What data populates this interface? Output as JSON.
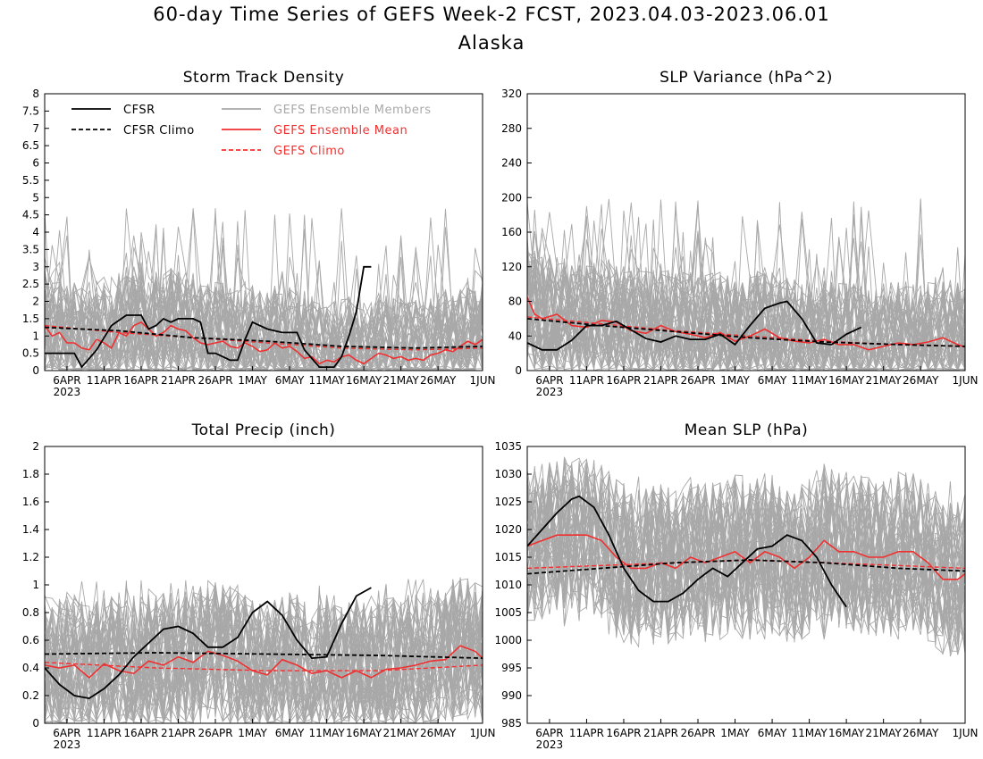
{
  "title": "60-day Time Series of GEFS Week-2 FCST, 2023.04.03-2023.06.01",
  "subtitle": "Alaska",
  "colors": {
    "cfsr": "#000000",
    "climo": "#000000",
    "members": "#a8a8a8",
    "mean": "#f03030",
    "gefs_climo": "#f03030"
  },
  "legend": {
    "cfsr": "CFSR",
    "cfsr_climo": "CFSR Climo",
    "members": "GEFS Ensemble Members",
    "mean": "GEFS Ensemble Mean",
    "gefs_climo": "GEFS Climo"
  },
  "x_ticks": [
    "6APR",
    "11APR",
    "16APR",
    "21APR",
    "26APR",
    "1MAY",
    "6MAY",
    "11MAY",
    "16MAY",
    "21MAY",
    "26MAY",
    "1JUN"
  ],
  "x_year": "2023",
  "chart_data": [
    {
      "id": "storm",
      "type": "line",
      "title": "Storm Track Density",
      "x_range": [
        "2023-04-03",
        "2023-06-01"
      ],
      "ylim": [
        0,
        8
      ],
      "y_ticks": [
        "0",
        "0.5",
        "1",
        "1.5",
        "2",
        "2.5",
        "3",
        "3.5",
        "4",
        "4.5",
        "5",
        "5.5",
        "6",
        "6.5",
        "7",
        "7.5",
        "8"
      ],
      "x_tick_dates": [
        "2023-04-06",
        "2023-04-11",
        "2023-04-16",
        "2023-04-21",
        "2023-04-26",
        "2023-05-01",
        "2023-05-06",
        "2023-05-11",
        "2023-05-16",
        "2023-05-21",
        "2023-05-26",
        "2023-06-01"
      ],
      "members_band": {
        "low": 0.0,
        "high": 2.2,
        "peak_max": 4.8
      },
      "series": [
        {
          "name": "CFSR",
          "x": [
            "2023-04-03",
            "2023-04-06",
            "2023-04-07",
            "2023-04-08",
            "2023-04-10",
            "2023-04-12",
            "2023-04-14",
            "2023-04-15",
            "2023-04-16",
            "2023-04-17",
            "2023-04-18",
            "2023-04-19",
            "2023-04-20",
            "2023-04-21",
            "2023-04-22",
            "2023-04-23",
            "2023-04-24",
            "2023-04-25",
            "2023-04-26",
            "2023-04-28",
            "2023-04-29",
            "2023-04-30",
            "2023-05-01",
            "2023-05-03",
            "2023-05-05",
            "2023-05-06",
            "2023-05-07",
            "2023-05-08",
            "2023-05-10",
            "2023-05-11",
            "2023-05-12",
            "2023-05-13",
            "2023-05-14",
            "2023-05-15",
            "2023-05-16",
            "2023-05-17"
          ],
          "y": [
            0.5,
            0.5,
            0.5,
            0.1,
            0.6,
            1.3,
            1.6,
            1.6,
            1.6,
            1.2,
            1.3,
            1.5,
            1.4,
            1.5,
            1.5,
            1.5,
            1.4,
            0.5,
            0.5,
            0.3,
            0.3,
            0.9,
            1.4,
            1.2,
            1.1,
            1.1,
            1.1,
            0.6,
            0.1,
            0.1,
            0.1,
            0.4,
            1.0,
            1.7,
            3.0,
            3.0
          ]
        },
        {
          "name": "CFSR Climo",
          "x": [
            "2023-04-03",
            "2023-04-13",
            "2023-04-23",
            "2023-05-03",
            "2023-05-13",
            "2023-05-23",
            "2023-06-01"
          ],
          "y": [
            1.25,
            1.15,
            0.95,
            0.85,
            0.7,
            0.65,
            0.7
          ]
        },
        {
          "name": "GEFS Ensemble Mean",
          "x": [
            "2023-04-03",
            "2023-04-04",
            "2023-04-05",
            "2023-04-06",
            "2023-04-07",
            "2023-04-08",
            "2023-04-09",
            "2023-04-10",
            "2023-04-11",
            "2023-04-12",
            "2023-04-13",
            "2023-04-14",
            "2023-04-15",
            "2023-04-16",
            "2023-04-17",
            "2023-04-18",
            "2023-04-19",
            "2023-04-20",
            "2023-04-21",
            "2023-04-22",
            "2023-04-23",
            "2023-04-24",
            "2023-04-25",
            "2023-04-26",
            "2023-04-27",
            "2023-04-28",
            "2023-04-29",
            "2023-04-30",
            "2023-05-01",
            "2023-05-02",
            "2023-05-03",
            "2023-05-04",
            "2023-05-05",
            "2023-05-06",
            "2023-05-07",
            "2023-05-08",
            "2023-05-09",
            "2023-05-10",
            "2023-05-11",
            "2023-05-12",
            "2023-05-13",
            "2023-05-14",
            "2023-05-15",
            "2023-05-16",
            "2023-05-17",
            "2023-05-18",
            "2023-05-19",
            "2023-05-20",
            "2023-05-21",
            "2023-05-22",
            "2023-05-23",
            "2023-05-24",
            "2023-05-25",
            "2023-05-26",
            "2023-05-27",
            "2023-05-28",
            "2023-05-29",
            "2023-05-30",
            "2023-05-31",
            "2023-06-01"
          ],
          "y": [
            1.3,
            1.0,
            1.1,
            0.8,
            0.8,
            0.65,
            0.6,
            0.9,
            0.8,
            0.65,
            1.1,
            1.0,
            1.3,
            1.4,
            1.2,
            1.0,
            1.1,
            1.3,
            1.2,
            1.15,
            0.95,
            0.8,
            0.75,
            0.8,
            0.85,
            0.7,
            0.65,
            0.8,
            0.7,
            0.55,
            0.6,
            0.8,
            0.65,
            0.7,
            0.55,
            0.35,
            0.4,
            0.2,
            0.3,
            0.25,
            0.4,
            0.45,
            0.3,
            0.2,
            0.35,
            0.5,
            0.45,
            0.35,
            0.4,
            0.3,
            0.35,
            0.3,
            0.45,
            0.5,
            0.6,
            0.55,
            0.7,
            0.85,
            0.75,
            0.9
          ]
        },
        {
          "name": "GEFS Climo",
          "x": [
            "2023-04-03",
            "2023-04-13",
            "2023-04-23",
            "2023-05-03",
            "2023-05-13",
            "2023-05-23",
            "2023-06-01"
          ],
          "y": [
            1.3,
            1.1,
            0.95,
            0.8,
            0.65,
            0.6,
            0.65
          ]
        }
      ]
    },
    {
      "id": "slpvar",
      "type": "line",
      "title": "SLP Variance (hPa^2)",
      "x_range": [
        "2023-04-03",
        "2023-06-01"
      ],
      "ylim": [
        0,
        320
      ],
      "y_ticks": [
        "0",
        "40",
        "80",
        "120",
        "160",
        "200",
        "240",
        "280",
        "320"
      ],
      "x_tick_dates": [
        "2023-04-06",
        "2023-04-11",
        "2023-04-16",
        "2023-04-21",
        "2023-04-26",
        "2023-05-01",
        "2023-05-06",
        "2023-05-11",
        "2023-05-16",
        "2023-05-21",
        "2023-05-26",
        "2023-06-01"
      ],
      "members_band": {
        "low": 10,
        "high": 100,
        "peak_max": 200
      },
      "series": [
        {
          "name": "CFSR",
          "x": [
            "2023-04-03",
            "2023-04-05",
            "2023-04-07",
            "2023-04-09",
            "2023-04-11",
            "2023-04-13",
            "2023-04-15",
            "2023-04-17",
            "2023-04-19",
            "2023-04-21",
            "2023-04-23",
            "2023-04-25",
            "2023-04-27",
            "2023-04-29",
            "2023-05-01",
            "2023-05-03",
            "2023-05-05",
            "2023-05-07",
            "2023-05-08",
            "2023-05-10",
            "2023-05-12",
            "2023-05-14",
            "2023-05-16",
            "2023-05-18"
          ],
          "y": [
            32,
            24,
            24,
            35,
            52,
            52,
            57,
            47,
            37,
            33,
            40,
            36,
            36,
            42,
            30,
            52,
            72,
            78,
            80,
            60,
            32,
            30,
            42,
            50
          ]
        },
        {
          "name": "CFSR Climo",
          "x": [
            "2023-04-03",
            "2023-04-13",
            "2023-04-23",
            "2023-05-03",
            "2023-05-13",
            "2023-05-23",
            "2023-06-01"
          ],
          "y": [
            60,
            52,
            45,
            38,
            33,
            30,
            28
          ]
        },
        {
          "name": "GEFS Ensemble Mean",
          "x": [
            "2023-04-03",
            "2023-04-04",
            "2023-04-05",
            "2023-04-07",
            "2023-04-09",
            "2023-04-11",
            "2023-04-13",
            "2023-04-15",
            "2023-04-17",
            "2023-04-19",
            "2023-04-21",
            "2023-04-23",
            "2023-04-25",
            "2023-04-27",
            "2023-04-29",
            "2023-05-01",
            "2023-05-03",
            "2023-05-05",
            "2023-05-07",
            "2023-05-09",
            "2023-05-11",
            "2023-05-13",
            "2023-05-15",
            "2023-05-17",
            "2023-05-19",
            "2023-05-21",
            "2023-05-23",
            "2023-05-25",
            "2023-05-27",
            "2023-05-29",
            "2023-05-31",
            "2023-06-01"
          ],
          "y": [
            85,
            65,
            60,
            65,
            52,
            50,
            58,
            56,
            46,
            43,
            52,
            45,
            42,
            38,
            44,
            34,
            40,
            48,
            38,
            34,
            32,
            36,
            30,
            30,
            24,
            28,
            32,
            30,
            33,
            38,
            30,
            27
          ]
        },
        {
          "name": "GEFS Climo",
          "x": [
            "2023-04-03",
            "2023-04-13",
            "2023-04-23",
            "2023-05-03",
            "2023-05-13",
            "2023-05-23",
            "2023-06-01"
          ],
          "y": [
            62,
            54,
            46,
            40,
            34,
            30,
            28
          ]
        }
      ]
    },
    {
      "id": "precip",
      "type": "line",
      "title": "Total Precip (inch)",
      "x_range": [
        "2023-04-03",
        "2023-06-01"
      ],
      "ylim": [
        0,
        2
      ],
      "y_ticks": [
        "0",
        "0.2",
        "0.4",
        "0.6",
        "0.8",
        "1",
        "1.2",
        "1.4",
        "1.6",
        "1.8",
        "2"
      ],
      "x_tick_dates": [
        "2023-04-06",
        "2023-04-11",
        "2023-04-16",
        "2023-04-21",
        "2023-04-26",
        "2023-05-01",
        "2023-05-06",
        "2023-05-11",
        "2023-05-16",
        "2023-05-21",
        "2023-05-26",
        "2023-06-01"
      ],
      "members_band": {
        "low": 0.15,
        "high": 0.8,
        "peak_max": 1.05
      },
      "series": [
        {
          "name": "CFSR",
          "x": [
            "2023-04-03",
            "2023-04-05",
            "2023-04-07",
            "2023-04-09",
            "2023-04-11",
            "2023-04-13",
            "2023-04-15",
            "2023-04-17",
            "2023-04-19",
            "2023-04-21",
            "2023-04-23",
            "2023-04-25",
            "2023-04-27",
            "2023-04-29",
            "2023-05-01",
            "2023-05-03",
            "2023-05-05",
            "2023-05-07",
            "2023-05-09",
            "2023-05-11",
            "2023-05-13",
            "2023-05-15",
            "2023-05-17"
          ],
          "y": [
            0.4,
            0.28,
            0.2,
            0.18,
            0.25,
            0.35,
            0.48,
            0.58,
            0.68,
            0.7,
            0.65,
            0.55,
            0.55,
            0.62,
            0.8,
            0.88,
            0.78,
            0.6,
            0.47,
            0.48,
            0.72,
            0.92,
            0.98
          ]
        },
        {
          "name": "CFSR Climo",
          "x": [
            "2023-04-03",
            "2023-04-18",
            "2023-05-03",
            "2023-05-18",
            "2023-06-01"
          ],
          "y": [
            0.5,
            0.51,
            0.5,
            0.49,
            0.47
          ]
        },
        {
          "name": "GEFS Ensemble Mean",
          "x": [
            "2023-04-03",
            "2023-04-05",
            "2023-04-07",
            "2023-04-09",
            "2023-04-11",
            "2023-04-13",
            "2023-04-15",
            "2023-04-17",
            "2023-04-19",
            "2023-04-21",
            "2023-04-23",
            "2023-04-25",
            "2023-04-27",
            "2023-04-29",
            "2023-05-01",
            "2023-05-03",
            "2023-05-05",
            "2023-05-07",
            "2023-05-09",
            "2023-05-11",
            "2023-05-13",
            "2023-05-15",
            "2023-05-17",
            "2023-05-19",
            "2023-05-21",
            "2023-05-23",
            "2023-05-25",
            "2023-05-27",
            "2023-05-29",
            "2023-05-31",
            "2023-06-01"
          ],
          "y": [
            0.42,
            0.4,
            0.42,
            0.33,
            0.43,
            0.38,
            0.36,
            0.45,
            0.42,
            0.48,
            0.44,
            0.52,
            0.49,
            0.45,
            0.38,
            0.35,
            0.46,
            0.42,
            0.36,
            0.38,
            0.33,
            0.38,
            0.33,
            0.39,
            0.4,
            0.42,
            0.45,
            0.46,
            0.56,
            0.52,
            0.47
          ]
        },
        {
          "name": "GEFS Climo",
          "x": [
            "2023-04-03",
            "2023-04-18",
            "2023-05-03",
            "2023-05-18",
            "2023-06-01"
          ],
          "y": [
            0.44,
            0.4,
            0.38,
            0.38,
            0.42
          ]
        }
      ]
    },
    {
      "id": "mslp",
      "type": "line",
      "title": "Mean SLP (hPa)",
      "x_range": [
        "2023-04-03",
        "2023-06-01"
      ],
      "ylim": [
        985,
        1035
      ],
      "y_ticks": [
        "985",
        "990",
        "995",
        "1000",
        "1005",
        "1010",
        "1015",
        "1020",
        "1025",
        "1030",
        "1035"
      ],
      "x_tick_dates": [
        "2023-04-06",
        "2023-04-11",
        "2023-04-16",
        "2023-04-21",
        "2023-04-26",
        "2023-05-01",
        "2023-05-06",
        "2023-05-11",
        "2023-05-16",
        "2023-05-21",
        "2023-05-26",
        "2023-06-01"
      ],
      "members_band": {
        "low": 1006,
        "high": 1024,
        "peak_max": 1030,
        "peak_min": 1000
      },
      "series": [
        {
          "name": "CFSR",
          "x": [
            "2023-04-03",
            "2023-04-05",
            "2023-04-07",
            "2023-04-09",
            "2023-04-10",
            "2023-04-12",
            "2023-04-14",
            "2023-04-16",
            "2023-04-18",
            "2023-04-20",
            "2023-04-22",
            "2023-04-24",
            "2023-04-26",
            "2023-04-28",
            "2023-04-30",
            "2023-05-02",
            "2023-05-04",
            "2023-05-06",
            "2023-05-08",
            "2023-05-10",
            "2023-05-12",
            "2023-05-14",
            "2023-05-16"
          ],
          "y": [
            1017,
            1020,
            1023,
            1025.5,
            1026,
            1024,
            1019,
            1013,
            1009,
            1007,
            1007,
            1008.5,
            1011,
            1013,
            1011.5,
            1014,
            1016.5,
            1017,
            1019,
            1018,
            1015,
            1010,
            1006
          ]
        },
        {
          "name": "CFSR Climo",
          "x": [
            "2023-04-03",
            "2023-04-13",
            "2023-04-23",
            "2023-05-03",
            "2023-05-13",
            "2023-05-23",
            "2023-06-01"
          ],
          "y": [
            1012,
            1013,
            1014,
            1014.5,
            1014,
            1013,
            1012.5
          ]
        },
        {
          "name": "GEFS Ensemble Mean",
          "x": [
            "2023-04-03",
            "2023-04-05",
            "2023-04-07",
            "2023-04-09",
            "2023-04-11",
            "2023-04-13",
            "2023-04-15",
            "2023-04-17",
            "2023-04-19",
            "2023-04-21",
            "2023-04-23",
            "2023-04-25",
            "2023-04-27",
            "2023-04-29",
            "2023-05-01",
            "2023-05-03",
            "2023-05-05",
            "2023-05-07",
            "2023-05-09",
            "2023-05-11",
            "2023-05-13",
            "2023-05-15",
            "2023-05-17",
            "2023-05-19",
            "2023-05-21",
            "2023-05-23",
            "2023-05-25",
            "2023-05-27",
            "2023-05-29",
            "2023-05-31",
            "2023-06-01"
          ],
          "y": [
            1017,
            1018,
            1019,
            1019,
            1019,
            1018,
            1015,
            1013,
            1013,
            1014,
            1013,
            1015,
            1014,
            1015,
            1016,
            1014,
            1016,
            1015,
            1013,
            1015,
            1018,
            1016,
            1016,
            1015,
            1015,
            1016,
            1016,
            1014,
            1011,
            1011,
            1012
          ]
        },
        {
          "name": "GEFS Climo",
          "x": [
            "2023-04-03",
            "2023-04-13",
            "2023-04-23",
            "2023-05-03",
            "2023-05-13",
            "2023-05-23",
            "2023-06-01"
          ],
          "y": [
            1013,
            1013.5,
            1014,
            1014.5,
            1014,
            1013.5,
            1013
          ]
        }
      ]
    }
  ]
}
